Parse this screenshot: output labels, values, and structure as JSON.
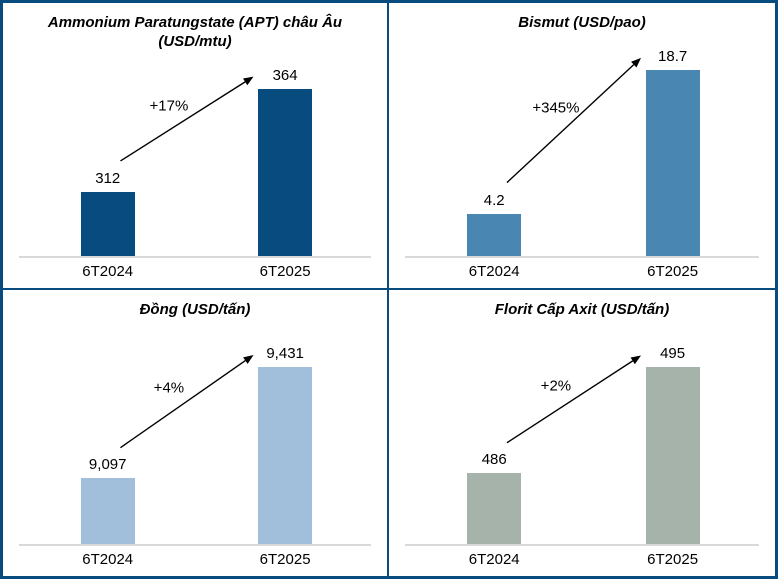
{
  "colors": {
    "border_navy": "#084B7E",
    "baseline_gray": "#D9D9D9",
    "arrow_black": "#000000",
    "text_black": "#000000"
  },
  "chart_data": [
    {
      "type": "bar",
      "title": "Ammonium Paratungstate (APT) châu Âu (USD/mtu)",
      "categories": [
        "6T2024",
        "6T2025"
      ],
      "values": [
        312,
        364
      ],
      "value_labels": [
        "312",
        "364"
      ],
      "pct_change": "+17%",
      "ylim": [
        280,
        380
      ],
      "bar_color": "#084B7E",
      "grid": false,
      "legend": false
    },
    {
      "type": "bar",
      "title": "Bismut (USD/pao)",
      "categories": [
        "6T2024",
        "6T2025"
      ],
      "values": [
        4.2,
        18.7
      ],
      "value_labels": [
        "4.2",
        "18.7"
      ],
      "pct_change": "+345%",
      "ylim": [
        0,
        20
      ],
      "bar_color": "#4A86B2",
      "grid": false,
      "legend": false
    },
    {
      "type": "bar",
      "title": "Đồng (USD/tấn)",
      "categories": [
        "6T2024",
        "6T2025"
      ],
      "values": [
        9097,
        9431
      ],
      "value_labels": [
        "9,097",
        "9,431"
      ],
      "pct_change": "+4%",
      "ylim": [
        8900,
        9500
      ],
      "bar_color": "#A1BFDB",
      "grid": false,
      "legend": false
    },
    {
      "type": "bar",
      "title": "Florit Cấp Axit (USD/tấn)",
      "categories": [
        "6T2024",
        "6T2025"
      ],
      "values": [
        486,
        495
      ],
      "value_labels": [
        "486",
        "495"
      ],
      "pct_change": "+2%",
      "ylim": [
        480,
        497
      ],
      "bar_color": "#A6B3AB",
      "grid": false,
      "legend": false
    }
  ]
}
